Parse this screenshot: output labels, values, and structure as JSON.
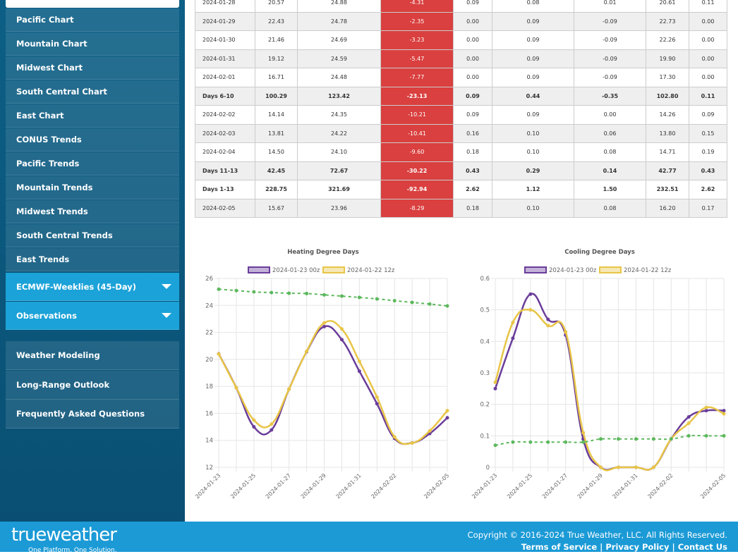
{
  "sidebar": {
    "items": [
      "Pacific Chart",
      "Mountain Chart",
      "Midwest Chart",
      "South Central Chart",
      "East Chart",
      "CONUS Trends",
      "Pacific Trends",
      "Mountain Trends",
      "Midwest Trends",
      "South Central Trends",
      "East Trends"
    ],
    "expanders": [
      "ECMWF-Weeklies (45-Day)",
      "Observations"
    ],
    "links": [
      "Weather Modeling",
      "Long-Range Outlook",
      "Frequently Asked Questions"
    ]
  },
  "table": {
    "rows": [
      [
        "2024-01-28",
        "20.57",
        "24.88",
        "-4.31",
        "0.09",
        "0.08",
        "0.01",
        "20.61",
        "0.11"
      ],
      [
        "2024-01-29",
        "22.43",
        "24.78",
        "-2.35",
        "0.00",
        "0.09",
        "-0.09",
        "22.73",
        "0.00"
      ],
      [
        "2024-01-30",
        "21.46",
        "24.69",
        "-3.23",
        "0.00",
        "0.09",
        "-0.09",
        "22.26",
        "0.00"
      ],
      [
        "2024-01-31",
        "19.12",
        "24.59",
        "-5.47",
        "0.00",
        "0.09",
        "-0.09",
        "19.90",
        "0.00"
      ],
      [
        "2024-02-01",
        "16.71",
        "24.48",
        "-7.77",
        "0.00",
        "0.09",
        "-0.09",
        "17.30",
        "0.00"
      ],
      [
        "Days 6-10",
        "100.29",
        "123.42",
        "-23.13",
        "0.09",
        "0.44",
        "-0.35",
        "102.80",
        "0.11"
      ],
      [
        "2024-02-02",
        "14.14",
        "24.35",
        "-10.21",
        "0.09",
        "0.09",
        "0.00",
        "14.26",
        "0.09"
      ],
      [
        "2024-02-03",
        "13.81",
        "24.22",
        "-10.41",
        "0.16",
        "0.10",
        "0.06",
        "13.80",
        "0.15"
      ],
      [
        "2024-02-04",
        "14.50",
        "24.10",
        "-9.60",
        "0.18",
        "0.10",
        "0.08",
        "14.71",
        "0.19"
      ],
      [
        "Days 11-13",
        "42.45",
        "72.67",
        "-30.22",
        "0.43",
        "0.29",
        "0.14",
        "42.77",
        "0.43"
      ],
      [
        "Days 1-13",
        "228.75",
        "321.69",
        "-92.94",
        "2.62",
        "1.12",
        "1.50",
        "232.51",
        "2.62"
      ],
      [
        "2024-02-05",
        "15.67",
        "23.96",
        "-8.29",
        "0.18",
        "0.10",
        "0.08",
        "16.20",
        "0.17"
      ]
    ]
  },
  "chart_data": [
    {
      "type": "line",
      "title": "Heating Degree Days",
      "categories": [
        "2024-01-23",
        null,
        "2024-01-25",
        null,
        "2024-01-27",
        null,
        "2024-01-29",
        null,
        "2024-01-31",
        null,
        "2024-02-02",
        null,
        null,
        "2024-02-05"
      ],
      "series": [
        {
          "name": "2024-01-23 00z",
          "color": "#6a3d9a",
          "values": [
            20.41,
            17.9,
            15.0,
            14.77,
            17.8,
            20.57,
            22.43,
            21.46,
            19.12,
            16.71,
            14.14,
            13.81,
            14.5,
            15.67
          ]
        },
        {
          "name": "2024-01-22 12z",
          "color": "#e8c547",
          "values": [
            20.4,
            17.9,
            15.5,
            15.2,
            17.8,
            20.6,
            22.7,
            22.25,
            19.85,
            17.2,
            14.25,
            13.8,
            14.7,
            16.2
          ]
        },
        {
          "color": "#5cb85c",
          "dashed": true,
          "values": [
            25.2,
            25.1,
            25.0,
            24.95,
            24.9,
            24.88,
            24.78,
            24.69,
            24.59,
            24.48,
            24.35,
            24.22,
            24.1,
            23.96
          ]
        }
      ],
      "ylim": [
        12,
        26
      ],
      "yticks": [
        12,
        14,
        16,
        18,
        20,
        22,
        24,
        26
      ],
      "grid": true
    },
    {
      "type": "line",
      "title": "Cooling Degree Days",
      "categories": [
        "2024-01-23",
        null,
        "2024-01-25",
        null,
        "2024-01-27",
        null,
        "2024-01-29",
        null,
        "2024-01-31",
        null,
        "2024-02-02",
        null,
        null,
        "2024-02-05"
      ],
      "series": [
        {
          "name": "2024-01-23 00z",
          "color": "#6a3d9a",
          "values": [
            0.25,
            0.41,
            0.55,
            0.47,
            0.42,
            0.09,
            0,
            0,
            0,
            0,
            0.09,
            0.16,
            0.18,
            0.18
          ]
        },
        {
          "name": "2024-01-22 12z",
          "color": "#e8c547",
          "values": [
            0.27,
            0.46,
            0.5,
            0.45,
            0.43,
            0.11,
            0,
            0,
            0,
            0,
            0.09,
            0.14,
            0.19,
            0.17
          ]
        },
        {
          "color": "#5cb85c",
          "dashed": true,
          "values": [
            0.07,
            0.08,
            0.08,
            0.08,
            0.08,
            0.08,
            0.09,
            0.09,
            0.09,
            0.09,
            0.09,
            0.1,
            0.1,
            0.1
          ]
        }
      ],
      "ylim": [
        0,
        0.6
      ],
      "yticks": [
        0,
        0.1,
        0.2,
        0.3,
        0.4,
        0.5,
        0.6
      ],
      "grid": true
    }
  ],
  "footer": {
    "logo": "trueweather",
    "tagline": "One Platform. One Solution.",
    "copyright": "Copyright © 2016-2024 True Weather, LLC. All Rights Reserved.",
    "links": [
      "Terms of Service",
      "Privacy Policy",
      "Contact Us"
    ],
    "separator": "|"
  }
}
